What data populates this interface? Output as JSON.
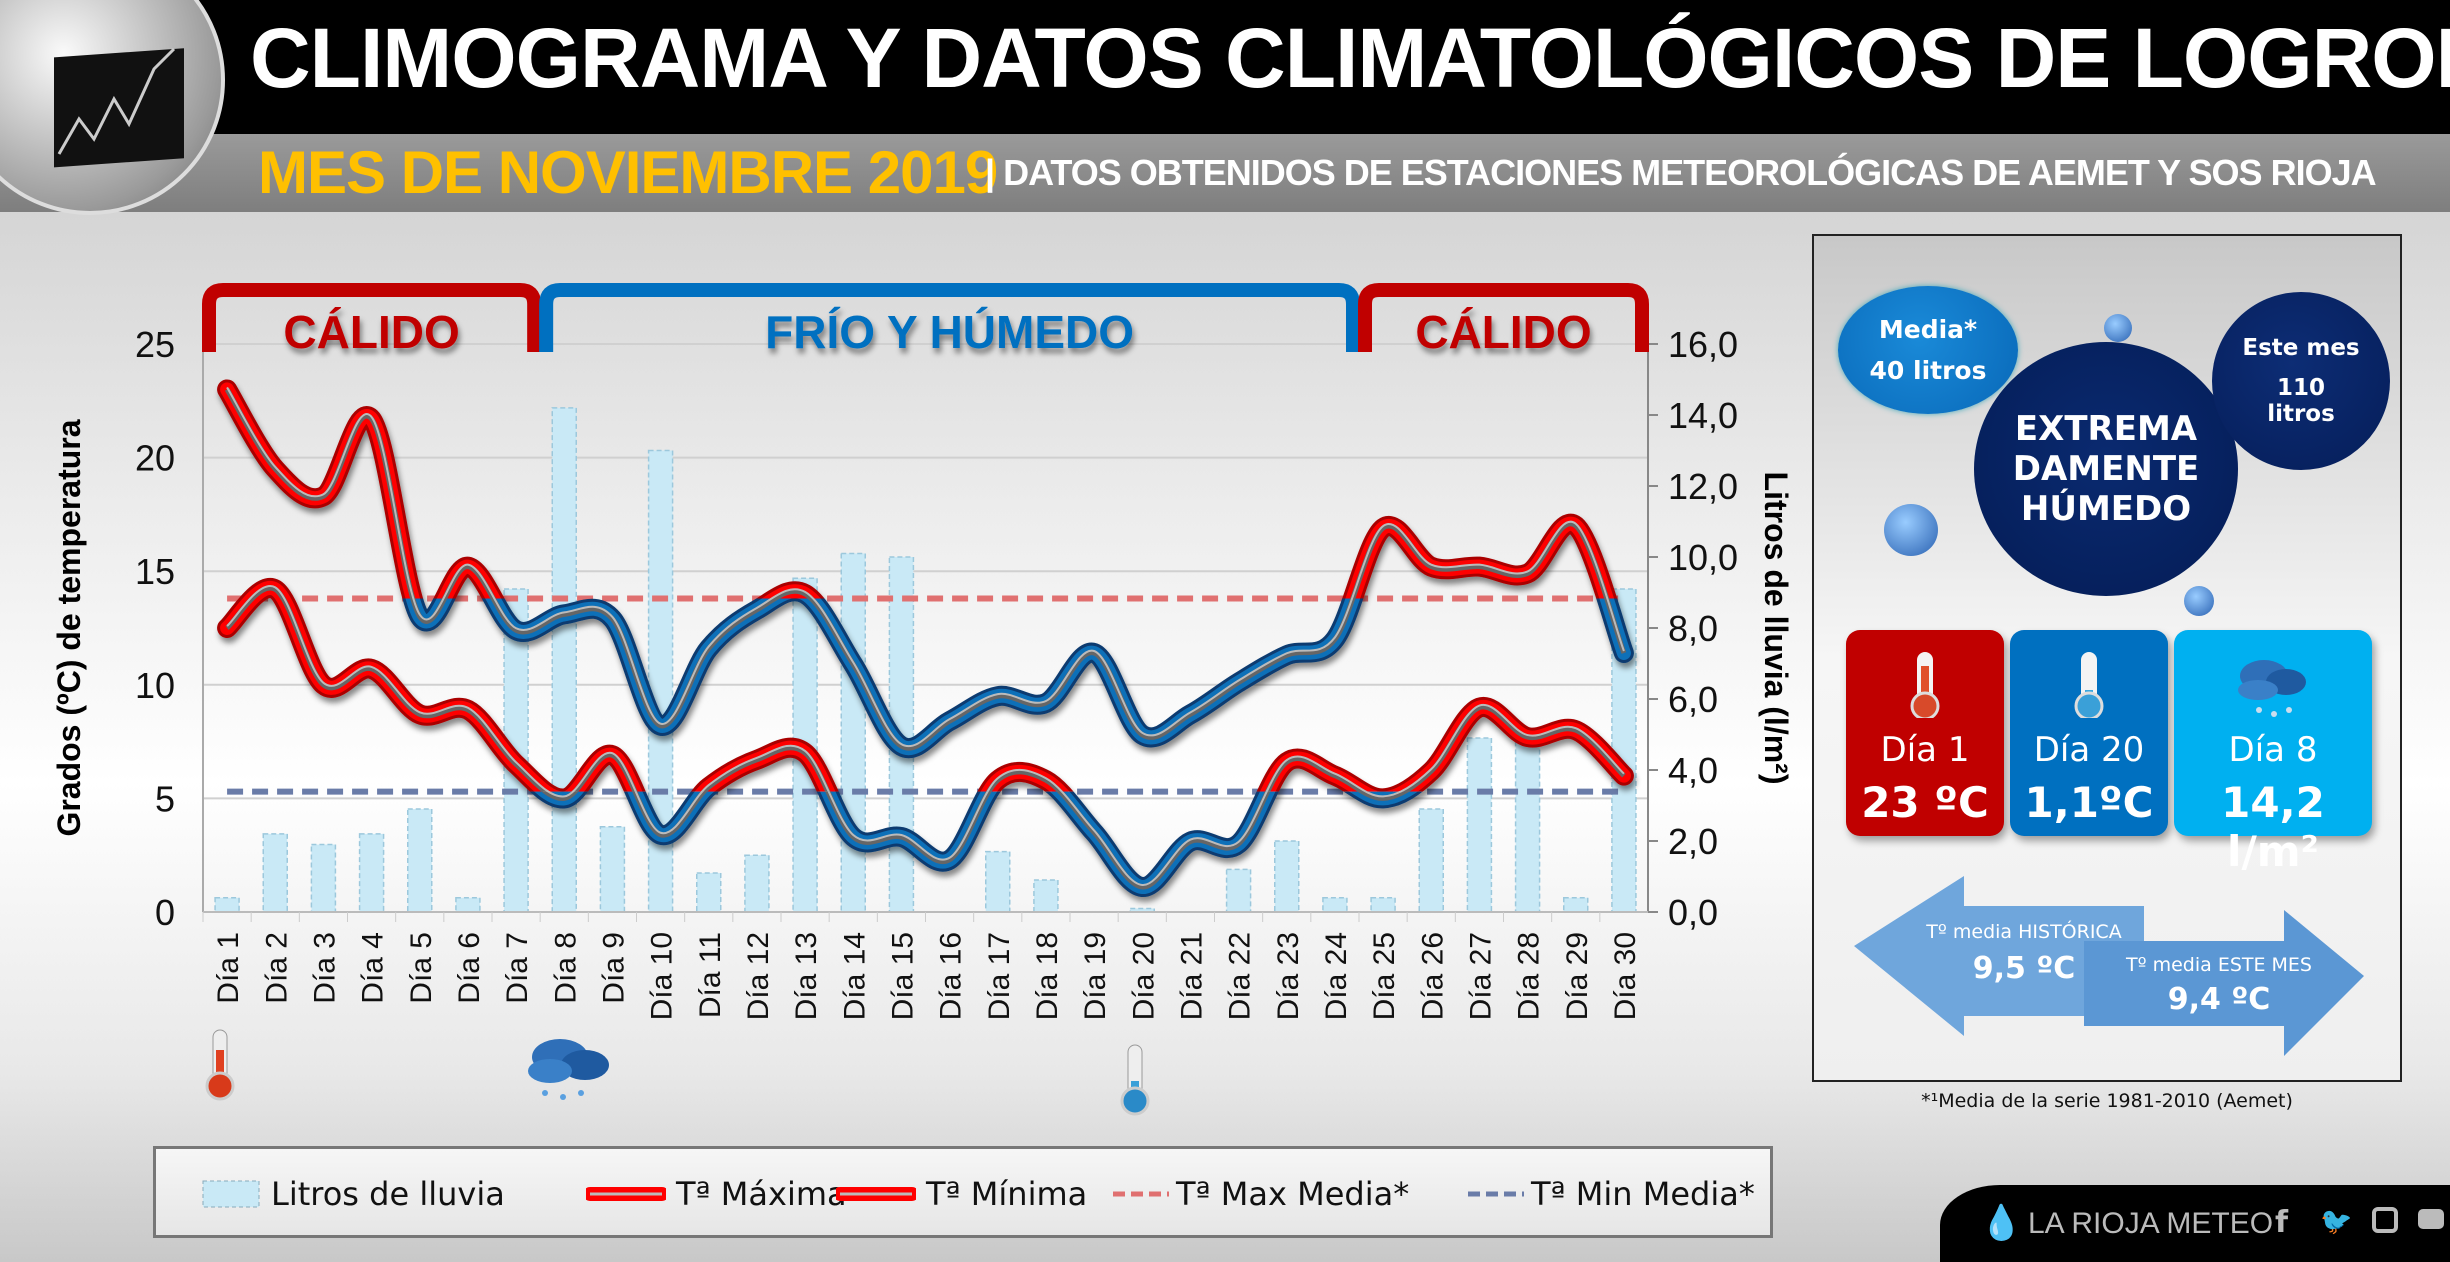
{
  "header": {
    "title": "CLIMOGRAMA Y DATOS CLIMATOLÓGICOS DE LOGROÑO",
    "month": "MES DE NOVIEMBRE 2019",
    "source": "| DATOS OBTENIDOS DE ESTACIONES METEOROLÓGICAS DE AEMET Y SOS RIOJA"
  },
  "periods": [
    {
      "label": "CÁLIDO",
      "from": 1,
      "to": 7,
      "color": "#c00000"
    },
    {
      "label": "FRÍO Y HÚMEDO",
      "from": 8,
      "to": 24,
      "color": "#0070c0"
    },
    {
      "label": "CÁLIDO",
      "from": 25,
      "to": 30,
      "color": "#c00000"
    }
  ],
  "chart_data": {
    "type": "bar+line",
    "categories": [
      "Día 1",
      "Día 2",
      "Día 3",
      "Día 4",
      "Día 5",
      "Día 6",
      "Día 7",
      "Día 8",
      "Día 9",
      "Día 10",
      "Día 11",
      "Día 12",
      "Día 13",
      "Día 14",
      "Día 15",
      "Día 16",
      "Día 17",
      "Día 18",
      "Día 19",
      "Día 20",
      "Día 21",
      "Día 22",
      "Día 23",
      "Día 24",
      "Día 25",
      "Día 26",
      "Día 27",
      "Día 28",
      "Día 29",
      "Día 30"
    ],
    "ylabel": "Grados (ºC) de temperatura",
    "y2label": "Litros de lluvia  (l/m²)",
    "ylim": [
      0,
      25
    ],
    "yticks": [
      "0",
      "5",
      "10",
      "15",
      "20",
      "25"
    ],
    "y2lim": [
      0,
      16
    ],
    "y2ticks": [
      "0,0",
      "2,0",
      "4,0",
      "6,0",
      "8,0",
      "10,0",
      "12,0",
      "14,0",
      "16,0"
    ],
    "grid": true,
    "series": [
      {
        "name": "Litros de lluvia",
        "type": "bar",
        "axis": "right",
        "color": "#c9e9f6",
        "values": [
          0.4,
          2.2,
          1.9,
          2.2,
          2.9,
          0.4,
          9.1,
          14.2,
          2.4,
          13.0,
          1.1,
          1.6,
          9.4,
          10.1,
          10.0,
          0,
          1.7,
          0.9,
          0,
          0.1,
          0,
          1.2,
          2.0,
          0.4,
          0.4,
          2.9,
          4.9,
          4.8,
          0.4,
          9.1
        ]
      },
      {
        "name": "Tª Máxima",
        "type": "line",
        "axis": "left",
        "color": "#ff0000",
        "values": [
          23.0,
          19.5,
          18.3,
          21.7,
          13.0,
          15.2,
          12.4,
          13.1,
          12.9,
          8.2,
          11.6,
          13.3,
          14.0,
          10.9,
          7.3,
          8.4,
          9.5,
          9.2,
          11.4,
          7.8,
          8.7,
          10.1,
          11.3,
          12.0,
          16.9,
          15.2,
          15.2,
          14.9,
          17.0,
          11.4
        ]
      },
      {
        "name": "Tª Mínima",
        "type": "line",
        "axis": "left",
        "color": "#ff0000",
        "values": [
          12.5,
          14.2,
          10.0,
          10.7,
          8.7,
          8.9,
          6.5,
          5.0,
          6.9,
          3.4,
          5.5,
          6.7,
          7.0,
          3.3,
          3.3,
          2.3,
          5.8,
          5.8,
          3.5,
          1.1,
          3.1,
          3.0,
          6.6,
          6.0,
          5.0,
          6.2,
          9.0,
          7.7,
          8.0,
          6.0
        ]
      },
      {
        "name": "Tª Max Media*",
        "type": "dashed",
        "axis": "left",
        "color": "#e07070",
        "value": 13.8
      },
      {
        "name": "Tª Min Media*",
        "type": "dashed",
        "axis": "left",
        "color": "#6a7ca8",
        "value": 5.3
      }
    ],
    "below_mean_color": "#0f6fb8",
    "legend": "bottom"
  },
  "panel": {
    "media_label": "Media*",
    "media_value": "40 litros",
    "center_text": [
      "EXTREMA",
      "DAMENTE",
      "HÚMEDO"
    ],
    "month_label": "Este mes",
    "month_value": "110",
    "month_unit": "litros",
    "boxes": [
      {
        "day": "Día 1",
        "value": "23 ºC",
        "icon": "thermometer-hot-icon",
        "color": "#c00000"
      },
      {
        "day": "Día 20",
        "value": "1,1ºC",
        "icon": "thermometer-cold-icon",
        "color": "#0070c0"
      },
      {
        "day": "Día 8",
        "value": "14,2 l/m²",
        "icon": "rain-cloud-icon",
        "color": "#00b0f0"
      }
    ],
    "hist_label": "Tº media HISTÓRICA",
    "hist_value": "9,5 ºC",
    "cur_label": "Tº media ESTE MES",
    "cur_value": "9,4 ºC",
    "footnote": "*¹Media de la serie 1981-2010 (Aemet)"
  },
  "brand": {
    "name": "LA RIOJA METEO",
    "social": [
      "facebook-icon",
      "twitter-icon",
      "instagram-icon",
      "youtube-icon"
    ]
  }
}
